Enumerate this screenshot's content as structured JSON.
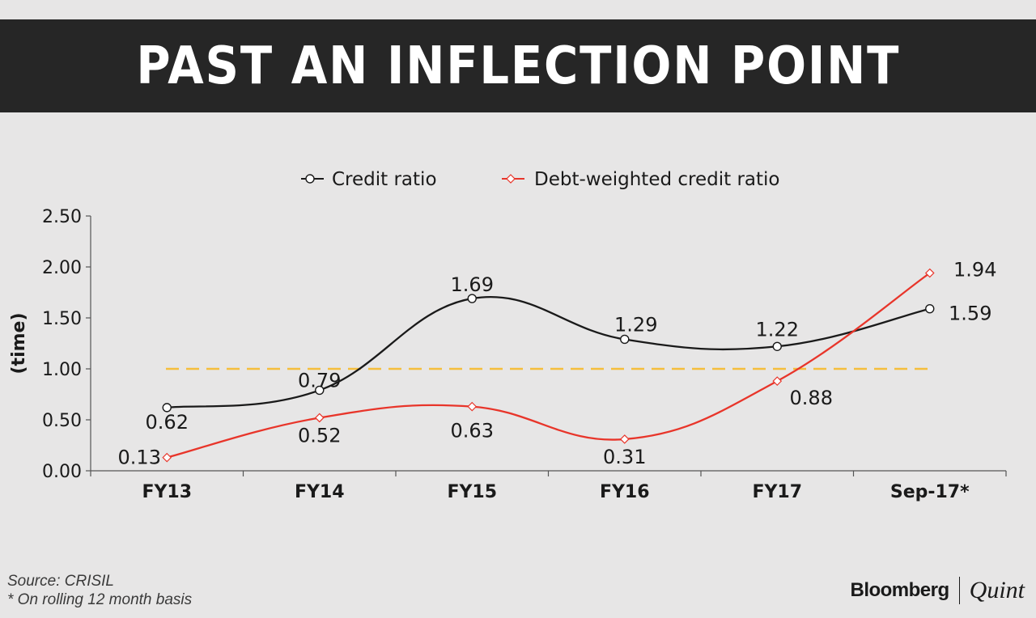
{
  "title": "PAST AN INFLECTION POINT",
  "source_line": "Source: CRISIL",
  "footnote_line": "* On rolling 12 month basis",
  "brand": {
    "primary": "Bloomberg",
    "secondary": "Quint"
  },
  "colors": {
    "credit_ratio": "#1a1a1a",
    "debt_weighted": "#e8352a",
    "reference_line": "#f5be3c",
    "title_bar": "#262626",
    "background": "#e7e6e6"
  },
  "chart_data": {
    "type": "line",
    "categories": [
      "FY13",
      "FY14",
      "FY15",
      "FY16",
      "FY17",
      "Sep-17*"
    ],
    "ylabel": "(time)",
    "xlabel": "",
    "ylim": [
      0,
      2.5
    ],
    "yticks": [
      "0.00",
      "0.50",
      "1.00",
      "1.50",
      "2.00",
      "2.50"
    ],
    "reference_line": {
      "value": 1.0,
      "style": "dashed"
    },
    "legend_position": "top",
    "grid": false,
    "series": [
      {
        "name": "Credit ratio",
        "values": [
          0.62,
          0.79,
          1.69,
          1.29,
          1.22,
          1.59
        ],
        "labels": [
          "0.62",
          "0.79",
          "1.69",
          "1.29",
          "1.22",
          "1.59"
        ],
        "marker": "circle"
      },
      {
        "name": "Debt-weighted credit ratio",
        "values": [
          0.13,
          0.52,
          0.63,
          0.31,
          0.88,
          1.94
        ],
        "labels": [
          "0.13",
          "0.52",
          "0.63",
          "0.31",
          "0.88",
          "1.94"
        ],
        "marker": "diamond"
      }
    ]
  }
}
